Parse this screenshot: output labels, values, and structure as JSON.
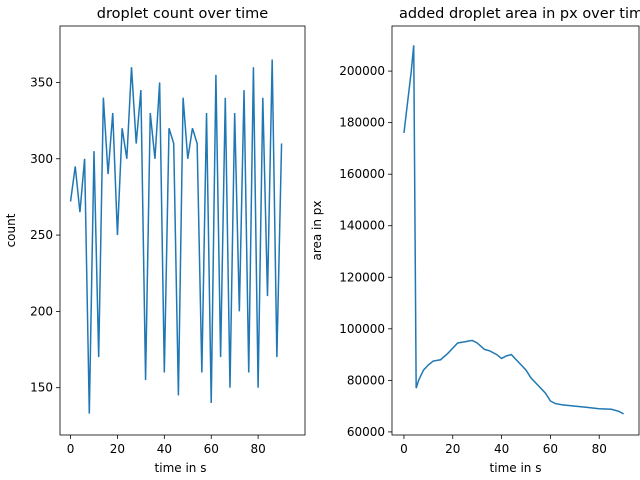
{
  "chart_data": [
    {
      "type": "line",
      "title": "droplet count over time",
      "xlabel": "time in s",
      "ylabel": "count",
      "xlim": [
        -4.5,
        100
      ],
      "ylim": [
        119,
        387
      ],
      "xticks": [
        0,
        20,
        40,
        60,
        80
      ],
      "yticks": [
        150,
        200,
        250,
        300,
        350
      ],
      "series": [
        {
          "color": "#1f77b4",
          "x": [
            0,
            2,
            4,
            6,
            8,
            10,
            12,
            14,
            16,
            18,
            20,
            22,
            24,
            26,
            28,
            30,
            32,
            34,
            36,
            38,
            40,
            42,
            44,
            46,
            48,
            50,
            52,
            54,
            56,
            58,
            60,
            62,
            64,
            66,
            68,
            70,
            72,
            74,
            76,
            78,
            80,
            82,
            84,
            86,
            88,
            90
          ],
          "values": [
            272,
            295,
            265,
            300,
            133,
            305,
            170,
            340,
            290,
            330,
            250,
            320,
            300,
            360,
            310,
            345,
            155,
            330,
            300,
            350,
            160,
            320,
            310,
            145,
            340,
            300,
            320,
            310,
            160,
            330,
            140,
            355,
            170,
            340,
            150,
            330,
            200,
            345,
            160,
            360,
            150,
            340,
            210,
            365,
            170,
            310
          ]
        }
      ]
    },
    {
      "type": "line",
      "title": "added droplet area in px over time",
      "xlabel": "time in s",
      "ylabel": "area in px",
      "xlim": [
        -4.9,
        96.3
      ],
      "ylim": [
        58800,
        217500
      ],
      "xticks": [
        0,
        20,
        40,
        60,
        80
      ],
      "yticks": [
        60000,
        80000,
        100000,
        120000,
        140000,
        160000,
        180000,
        200000
      ],
      "series": [
        {
          "color": "#1f77b4",
          "x": [
            0,
            1,
            2,
            3,
            4,
            5,
            6,
            8,
            10,
            12,
            15,
            18,
            20,
            22,
            25,
            28,
            30,
            33,
            35,
            38,
            40,
            42,
            44,
            46,
            48,
            50,
            52,
            55,
            58,
            60,
            62,
            65,
            70,
            75,
            80,
            85,
            88,
            90
          ],
          "values": [
            176000,
            184000,
            192000,
            200000,
            210000,
            77000,
            80000,
            84000,
            86000,
            87500,
            88000,
            90500,
            92500,
            94500,
            95000,
            95500,
            94500,
            92000,
            91500,
            90000,
            88500,
            89500,
            90000,
            88000,
            86000,
            84000,
            81000,
            78000,
            75000,
            72000,
            71000,
            70500,
            70000,
            69500,
            69000,
            68800,
            68000,
            67000
          ]
        }
      ]
    }
  ]
}
